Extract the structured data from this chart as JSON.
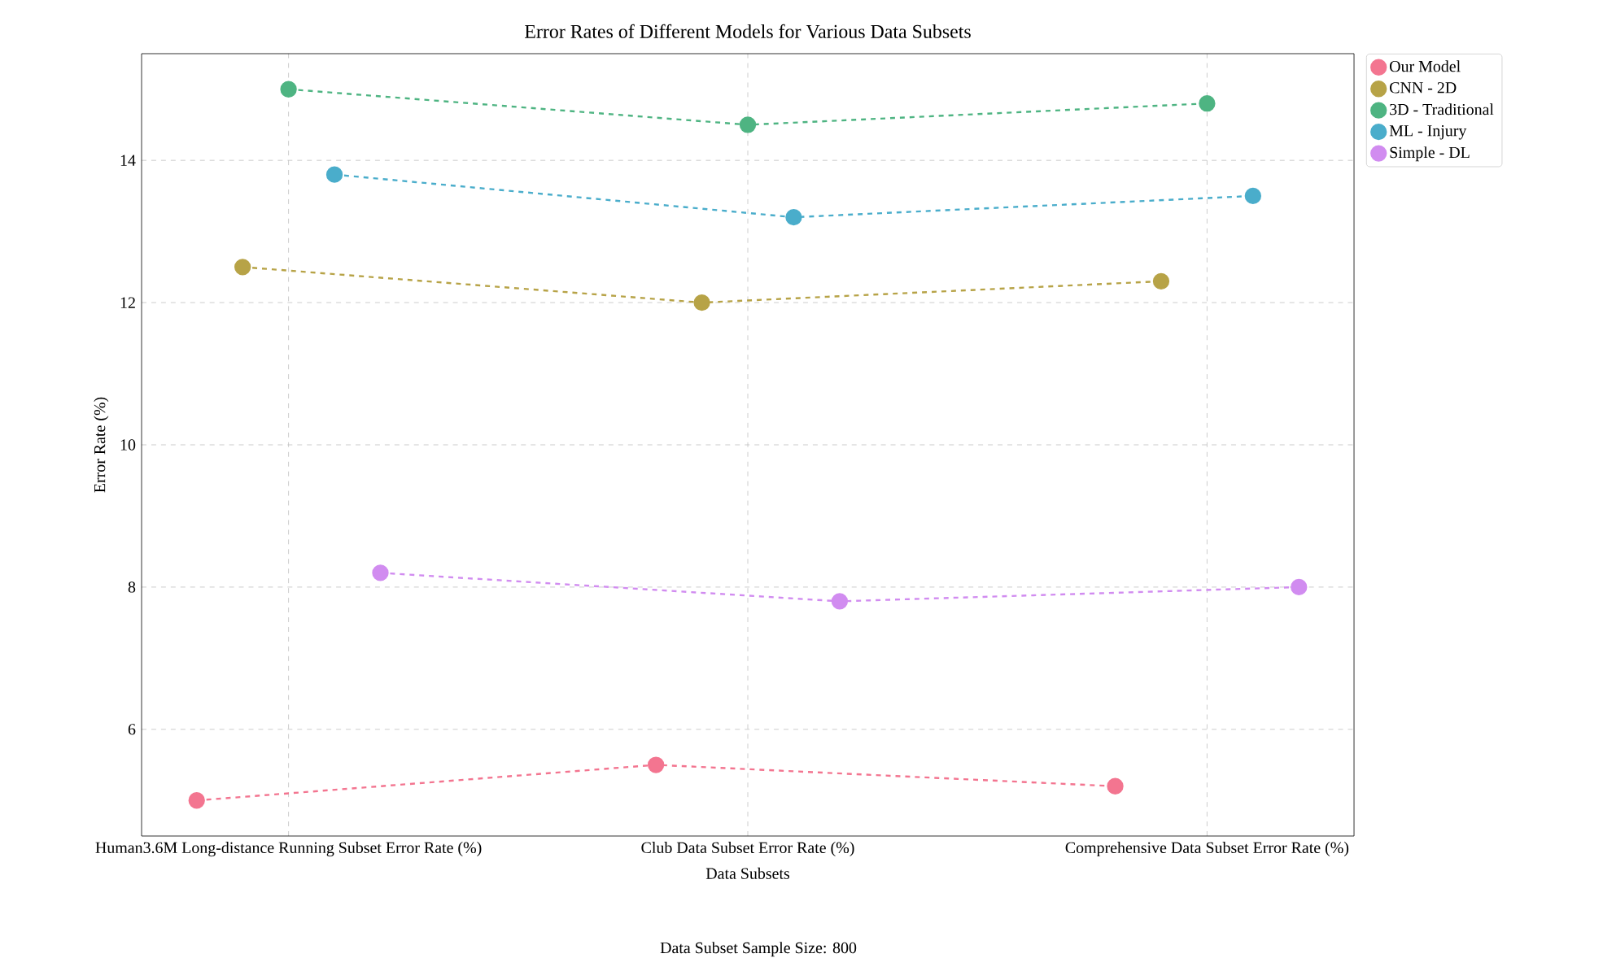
{
  "chart_data": {
    "type": "line",
    "title": "Error Rates of Different Models for Various Data Subsets",
    "xlabel": "Data Subsets",
    "ylabel": "Error Rate (%)",
    "categories": [
      "Human3.6M Long-distance Running Subset Error Rate (%)",
      "Club Data Subset Error Rate (%)",
      "Comprehensive Data Subset Error Rate (%)"
    ],
    "series": [
      {
        "name": "Our Model",
        "color": "#f37590",
        "values": [
          5.0,
          5.5,
          5.2
        ]
      },
      {
        "name": "CNN - 2D",
        "color": "#b7a347",
        "values": [
          12.5,
          12.0,
          12.3
        ]
      },
      {
        "name": "3D - Traditional",
        "color": "#4eb482",
        "values": [
          15.0,
          14.5,
          14.8
        ]
      },
      {
        "name": "ML - Injury",
        "color": "#4aadcb",
        "values": [
          13.8,
          13.2,
          13.5
        ]
      },
      {
        "name": "Simple - DL",
        "color": "#d18cf0",
        "values": [
          8.2,
          7.8,
          8.0
        ]
      }
    ],
    "ylim": [
      4.5,
      15.5
    ],
    "yticks": [
      6,
      8,
      10,
      12,
      14
    ],
    "grid": true,
    "legend": "right",
    "marker": "circle",
    "line_style": "dashed",
    "annotations": [
      "Data Subset Sample Size: 800"
    ]
  }
}
